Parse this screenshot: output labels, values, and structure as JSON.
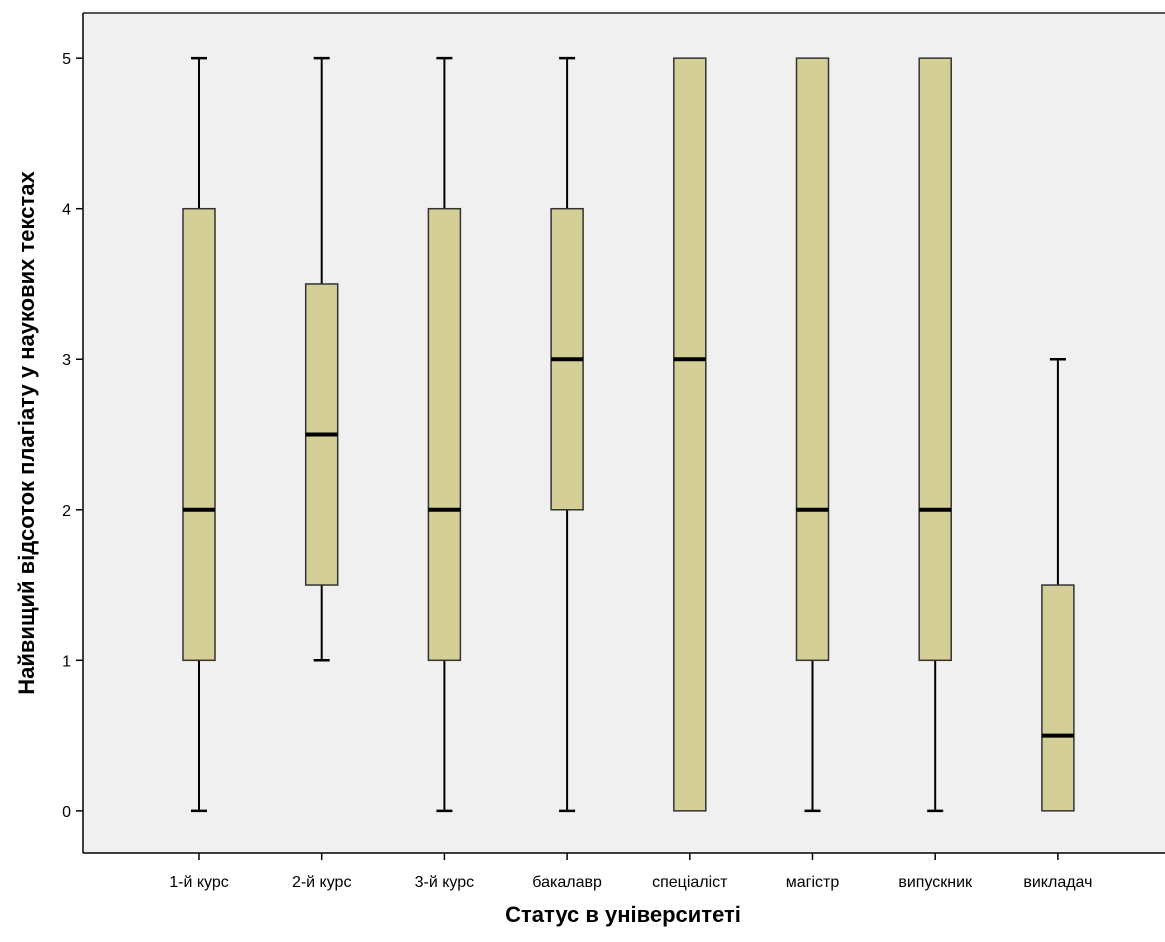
{
  "chart_data": {
    "type": "boxplot",
    "title": "",
    "xlabel": "Статус в університеті",
    "ylabel": "Найвищий відсоток плагіату у наукових текстах",
    "ylim": [
      -0.28,
      5.3
    ],
    "yticks": [
      0,
      1,
      2,
      3,
      4,
      5
    ],
    "grid": false,
    "categories": [
      "1-й курс",
      "2-й курс",
      "3-й курс",
      "бакалавр",
      "спеціаліст",
      "магістр",
      "випускник",
      "викладач"
    ],
    "boxes": [
      {
        "category": "1-й курс",
        "min": 0,
        "q1": 1,
        "median": 2,
        "q3": 4,
        "max": 5
      },
      {
        "category": "2-й курс",
        "min": 1,
        "q1": 1.5,
        "median": 2.5,
        "q3": 3.5,
        "max": 5
      },
      {
        "category": "3-й курс",
        "min": 0,
        "q1": 1,
        "median": 2,
        "q3": 4,
        "max": 5
      },
      {
        "category": "бакалавр",
        "min": 0,
        "q1": 2,
        "median": 3,
        "q3": 4,
        "max": 5
      },
      {
        "category": "спеціаліст",
        "min": 0,
        "q1": 0,
        "median": 3,
        "q3": 5,
        "max": 5
      },
      {
        "category": "магістр",
        "min": 0,
        "q1": 1,
        "median": 2,
        "q3": 5,
        "max": 5
      },
      {
        "category": "випускник",
        "min": 0,
        "q1": 1,
        "median": 2,
        "q3": 5,
        "max": 5
      },
      {
        "category": "викладач",
        "min": 0,
        "q1": 0,
        "median": 0.5,
        "q3": 1.5,
        "max": 3
      }
    ],
    "colors": {
      "box_fill": "#d4cf96",
      "plot_background": "#f0f0f0",
      "line": "#000000"
    }
  }
}
